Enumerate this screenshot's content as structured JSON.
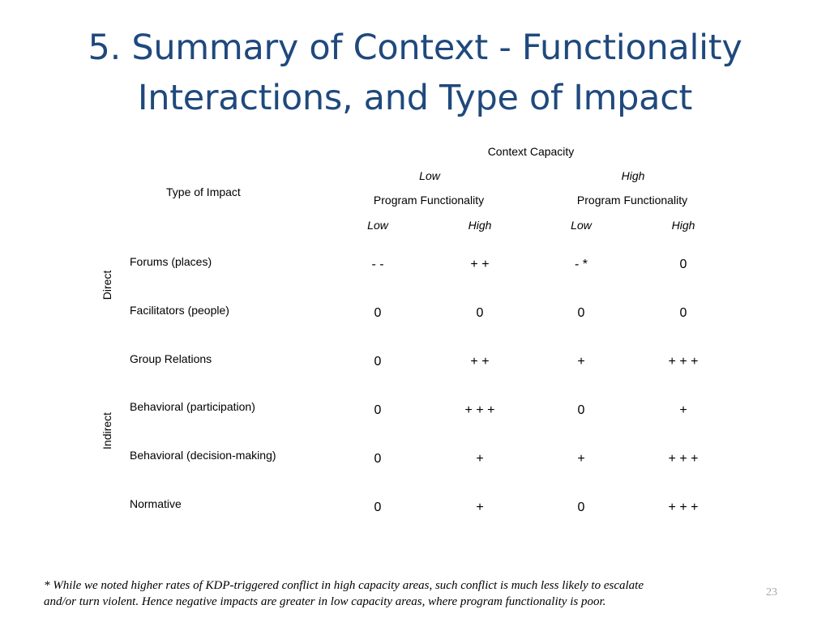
{
  "slide": {
    "title_line1": "5. Summary of Context - Functionality",
    "title_line2": "Interactions, and Type of Impact",
    "slide_number": "23"
  },
  "table": {
    "context_capacity": "Context Capacity",
    "type_of_impact": "Type of Impact",
    "capacity_low": "Low",
    "capacity_high": "High",
    "program_functionality": "Program Functionality",
    "functionality_low": "Low",
    "functionality_high": "High",
    "group_direct": "Direct",
    "group_indirect": "Indirect",
    "rows": [
      {
        "label": "Forums (places)",
        "values": [
          "- -",
          "+ +",
          "- *",
          "0"
        ]
      },
      {
        "label": "Facilitators (people)",
        "values": [
          "0",
          "0",
          "0",
          "0"
        ]
      },
      {
        "label": "Group Relations",
        "values": [
          "0",
          "+ +",
          "+",
          "+ + +"
        ]
      },
      {
        "label": "Behavioral (participation)",
        "values": [
          "0",
          "+ + +",
          "0",
          "+"
        ]
      },
      {
        "label": "Behavioral (decision-making)",
        "values": [
          "0",
          "+",
          "+",
          "+ + +"
        ]
      },
      {
        "label": "Normative",
        "values": [
          "0",
          "+",
          "0",
          "+ + +"
        ]
      }
    ]
  },
  "footnote": {
    "line1": "* While we noted higher rates of KDP-triggered conflict in high capacity areas, such conflict is much less likely to escalate",
    "line2": "and/or turn violent.  Hence negative impacts are greater in low capacity areas, where program functionality is poor."
  }
}
